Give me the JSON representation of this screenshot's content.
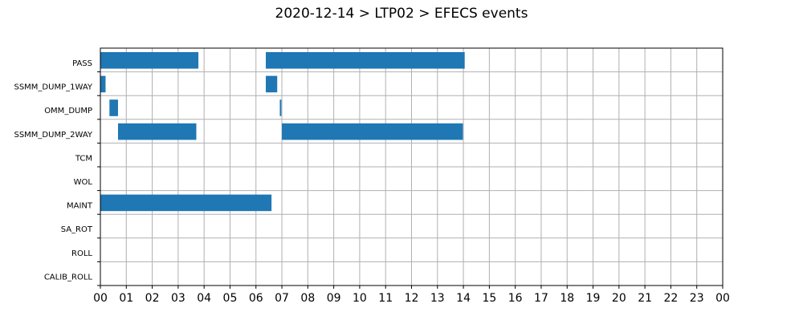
{
  "chart_data": {
    "type": "bar",
    "orientation": "horizontal-timeline",
    "title": "2020-12-14 > LTP02 > EFECS events",
    "xlabel": "",
    "ylabel": "",
    "x_unit": "hour",
    "xlim": [
      0,
      24
    ],
    "x_tick_labels": [
      "00",
      "01",
      "02",
      "03",
      "04",
      "05",
      "06",
      "07",
      "08",
      "09",
      "10",
      "11",
      "12",
      "13",
      "14",
      "15",
      "16",
      "17",
      "18",
      "19",
      "20",
      "21",
      "22",
      "23",
      "00"
    ],
    "categories": [
      "PASS",
      "SSMM_DUMP_1WAY",
      "OMM_DUMP",
      "SSMM_DUMP_2WAY",
      "TCM",
      "WOL",
      "MAINT",
      "SA_ROT",
      "ROLL",
      "CALIB_ROLL"
    ],
    "grid": true,
    "bar_color": "#1f77b4",
    "events": [
      {
        "category": "PASS",
        "start": 0.0,
        "end": 3.78
      },
      {
        "category": "PASS",
        "start": 6.38,
        "end": 14.05
      },
      {
        "category": "SSMM_DUMP_1WAY",
        "start": 0.0,
        "end": 0.2
      },
      {
        "category": "SSMM_DUMP_1WAY",
        "start": 6.38,
        "end": 6.82
      },
      {
        "category": "OMM_DUMP",
        "start": 0.35,
        "end": 0.68
      },
      {
        "category": "OMM_DUMP",
        "start": 6.92,
        "end": 6.98
      },
      {
        "category": "SSMM_DUMP_2WAY",
        "start": 0.68,
        "end": 3.7
      },
      {
        "category": "SSMM_DUMP_2WAY",
        "start": 7.0,
        "end": 13.98
      },
      {
        "category": "MAINT",
        "start": 0.0,
        "end": 6.6
      }
    ]
  }
}
